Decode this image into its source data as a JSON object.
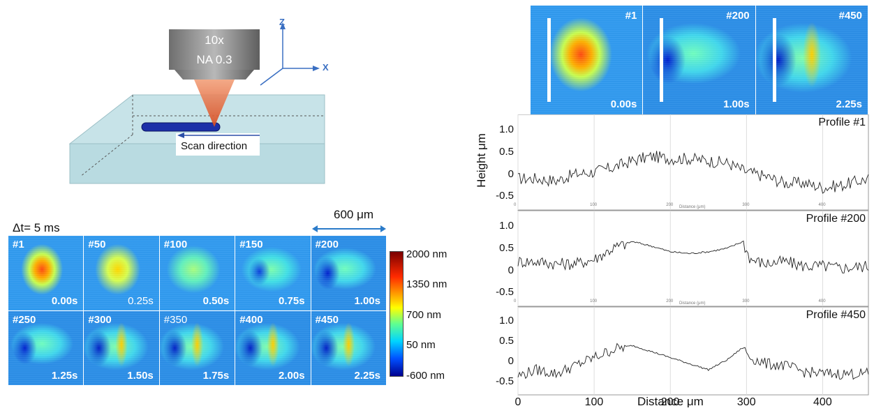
{
  "schematic": {
    "objective_line1": "10x",
    "objective_line2": "NA 0.3",
    "axis_z": "Z",
    "axis_x": "X",
    "scan_label": "Scan direction"
  },
  "frames": {
    "dt_label": "Δt= 5 ms",
    "scale_label": "600 μm",
    "tiles": [
      {
        "num": "#1",
        "time": "0.00s"
      },
      {
        "num": "#50",
        "time": "0.25s"
      },
      {
        "num": "#100",
        "time": "0.50s"
      },
      {
        "num": "#150",
        "time": "0.75s"
      },
      {
        "num": "#200",
        "time": "1.00s"
      },
      {
        "num": "#250",
        "time": "1.25s"
      },
      {
        "num": "#300",
        "time": "1.50s"
      },
      {
        "num": "#350",
        "time": "1.75s"
      },
      {
        "num": "#400",
        "time": "2.00s"
      },
      {
        "num": "#450",
        "time": "2.25s"
      }
    ]
  },
  "colorbar": {
    "labels": [
      "2000 nm",
      "1350 nm",
      "700 nm",
      "50 nm",
      "-600 nm"
    ],
    "values": [
      2000,
      1350,
      700,
      50,
      -600
    ],
    "colors": [
      "#7a0000",
      "#ff2a00",
      "#ffff00",
      "#00d4ff",
      "#00008f"
    ]
  },
  "top_strip": [
    {
      "num": "#1",
      "time": "0.00s"
    },
    {
      "num": "#200",
      "time": "1.00s"
    },
    {
      "num": "#450",
      "time": "2.25s"
    }
  ],
  "chart_data": {
    "type": "line",
    "ylabel": "Height μm",
    "xlabel": "Distance μm",
    "xlim": [
      0,
      460
    ],
    "ylim": [
      -0.65,
      1.25
    ],
    "yticks": [
      "1.0",
      "0.5",
      "0",
      "-0.5"
    ],
    "xticks": [
      "0",
      "100",
      "200",
      "300",
      "400"
    ],
    "mini_xlabel": "Distance (μm)",
    "mini_xticks": [
      "0",
      "100",
      "200",
      "300",
      "400"
    ],
    "series": [
      {
        "name": "Profile #1",
        "x": [
          0,
          25,
          50,
          75,
          100,
          125,
          150,
          175,
          200,
          225,
          250,
          275,
          300,
          325,
          350,
          375,
          400,
          425,
          460
        ],
        "y": [
          -0.1,
          -0.1,
          -0.15,
          0.0,
          0.05,
          0.15,
          0.3,
          0.4,
          0.35,
          0.35,
          0.3,
          0.25,
          0.05,
          -0.05,
          -0.2,
          -0.2,
          -0.3,
          -0.25,
          -0.1
        ]
      },
      {
        "name": "Profile #200",
        "x": [
          0,
          25,
          50,
          75,
          100,
          125,
          150,
          175,
          200,
          225,
          250,
          275,
          295,
          305,
          325,
          350,
          375,
          400,
          425,
          460
        ],
        "y": [
          0.2,
          0.2,
          0.15,
          0.15,
          0.25,
          0.5,
          0.65,
          0.55,
          0.42,
          0.38,
          0.42,
          0.5,
          0.65,
          0.25,
          0.15,
          0.2,
          0.1,
          0.1,
          0.05,
          0.1
        ]
      },
      {
        "name": "Profile #450",
        "x": [
          0,
          25,
          50,
          75,
          100,
          125,
          150,
          175,
          200,
          225,
          250,
          275,
          295,
          305,
          325,
          350,
          375,
          400,
          425,
          460
        ],
        "y": [
          -0.35,
          -0.2,
          -0.3,
          -0.1,
          0.1,
          0.3,
          0.4,
          0.25,
          0.1,
          -0.05,
          -0.2,
          0.05,
          0.35,
          0.1,
          -0.05,
          -0.1,
          -0.25,
          -0.3,
          -0.3,
          -0.3
        ]
      }
    ]
  }
}
